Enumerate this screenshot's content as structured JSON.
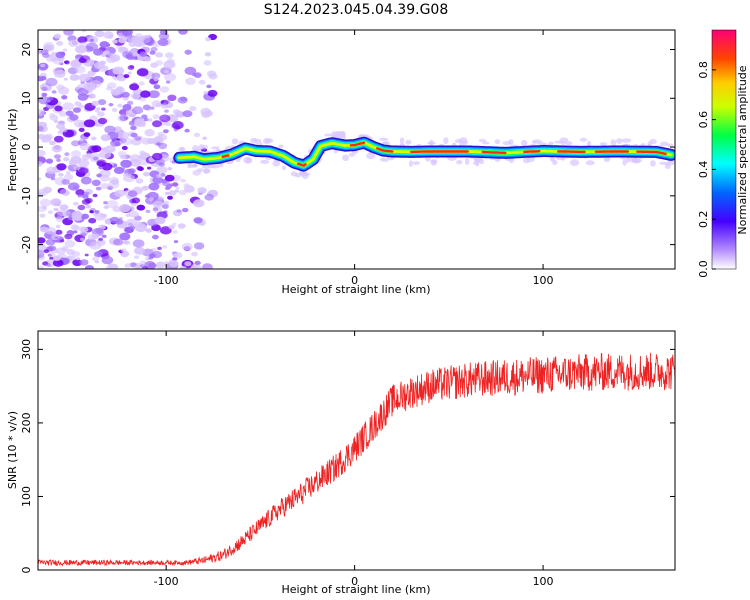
{
  "title": "S124.2023.045.04.39.G08",
  "chart_data": [
    {
      "type": "heatmap",
      "xlabel": "Height of straight line (km)",
      "ylabel": "Frequency (Hz)",
      "xlim": [
        -168,
        170
      ],
      "ylim": [
        -25,
        24
      ],
      "xticks": [
        -100,
        0,
        100
      ],
      "yticks": [
        -20,
        -10,
        0,
        10,
        20
      ],
      "colorbar": {
        "label": "Normalized spectral amplitude",
        "range": [
          0,
          0.96
        ],
        "ticks": [
          0.0,
          0.2,
          0.4,
          0.6,
          0.8
        ]
      },
      "noise_region_x_end": -95,
      "ridge": {
        "x": [
          -93,
          -85,
          -80,
          -72,
          -65,
          -58,
          -52,
          -45,
          -38,
          -32,
          -27,
          -22,
          -18,
          -12,
          -5,
          0,
          5,
          10,
          15,
          20,
          30,
          40,
          60,
          80,
          100,
          120,
          140,
          160,
          168
        ],
        "freq": [
          -2.2,
          -2.0,
          -2.5,
          -2.2,
          -1.5,
          -0.3,
          -0.8,
          -0.9,
          -1.8,
          -3.2,
          -3.8,
          -2.5,
          0.2,
          0.8,
          0.3,
          0.4,
          0.9,
          0.0,
          -0.7,
          -0.9,
          -1.0,
          -0.9,
          -0.9,
          -1.2,
          -0.8,
          -1.0,
          -0.9,
          -1.0,
          -1.6
        ]
      }
    },
    {
      "type": "line",
      "xlabel": "Height of straight line (km)",
      "ylabel": "SNR (10 * v/v)",
      "xlim": [
        -168,
        170
      ],
      "ylim": [
        0,
        325
      ],
      "xticks": [
        -100,
        0,
        100
      ],
      "yticks": [
        0,
        100,
        200,
        300
      ],
      "color": "#ee2222",
      "trend": {
        "x": [
          -168,
          -120,
          -90,
          -80,
          -70,
          -60,
          -50,
          -40,
          -30,
          -20,
          -10,
          0,
          10,
          20,
          30,
          40,
          60,
          80,
          100,
          120,
          140,
          170
        ],
        "y": [
          10,
          10,
          10,
          13,
          20,
          38,
          60,
          82,
          100,
          120,
          140,
          165,
          195,
          230,
          242,
          250,
          258,
          262,
          265,
          268,
          270,
          270
        ]
      },
      "noise_amplitude": {
        "x": [
          -168,
          -90,
          -60,
          -30,
          0,
          20,
          50,
          100,
          170
        ],
        "y": [
          4,
          3,
          10,
          16,
          20,
          22,
          24,
          26,
          26
        ]
      }
    }
  ]
}
